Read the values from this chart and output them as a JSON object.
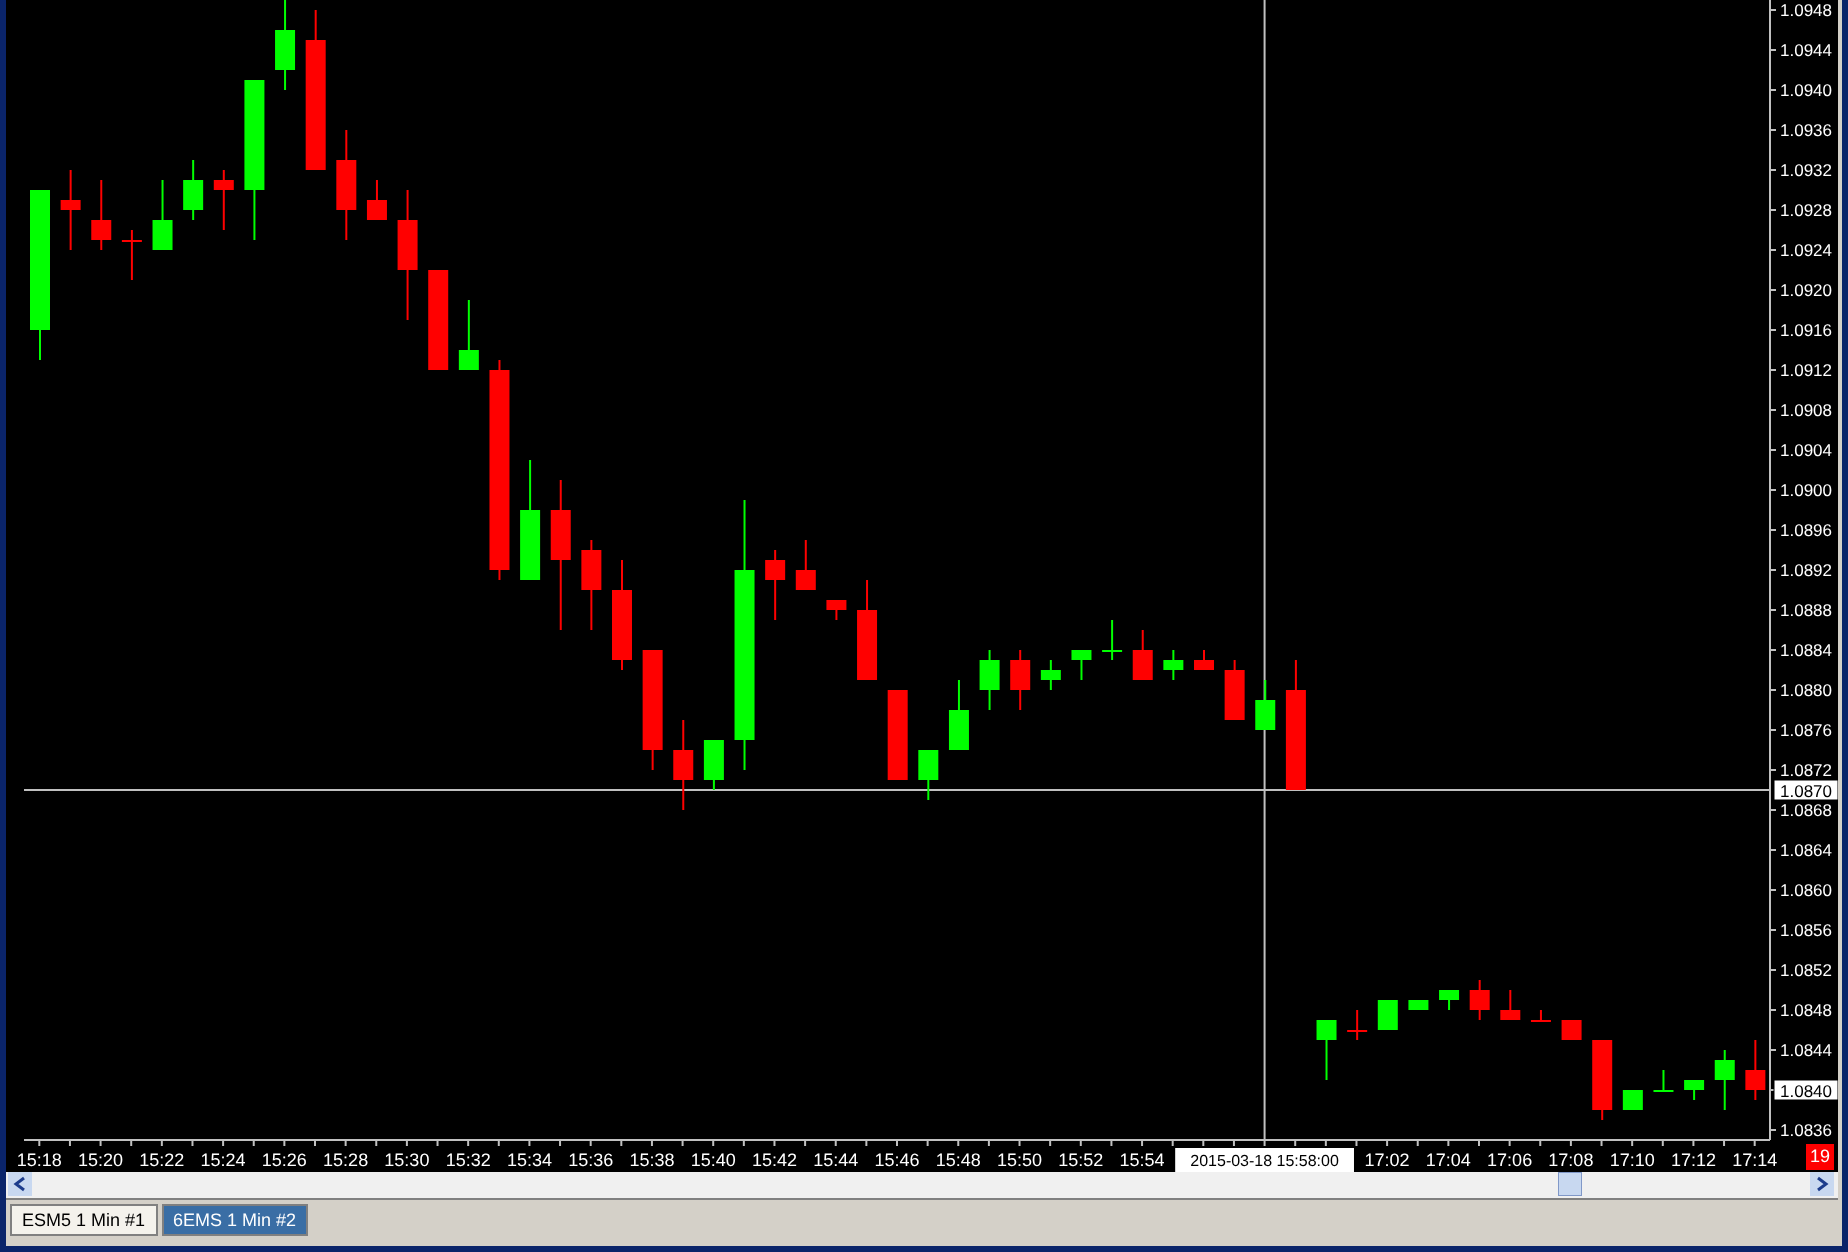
{
  "chart_data": {
    "type": "candlestick",
    "categories": [
      "15:18",
      null,
      "15:20",
      null,
      "15:22",
      null,
      "15:24",
      null,
      "15:26",
      null,
      "15:28",
      null,
      "15:30",
      null,
      "15:32",
      null,
      "15:34",
      null,
      "15:36",
      null,
      "15:38",
      null,
      "15:40",
      null,
      "15:42",
      null,
      "15:44",
      null,
      "15:46",
      null,
      "15:48",
      null,
      "15:50",
      null,
      "15:52",
      null,
      "15:54",
      null,
      null,
      null,
      "2015-03-18 15:58:00",
      null,
      null,
      null,
      "17:02",
      null,
      "17:04",
      null,
      "17:06",
      null,
      "17:08",
      null,
      "17:10",
      null,
      "17:12",
      null,
      "17:14"
    ],
    "ohlc": [
      [
        1.0916,
        1.093,
        1.0913,
        1.093
      ],
      [
        1.0929,
        1.0932,
        1.0924,
        1.0928
      ],
      [
        1.0927,
        1.0931,
        1.0924,
        1.0925
      ],
      [
        1.0925,
        1.0926,
        1.0921,
        1.0925
      ],
      [
        1.0924,
        1.0931,
        1.0924,
        1.0927
      ],
      [
        1.0928,
        1.0933,
        1.0927,
        1.0931
      ],
      [
        1.0931,
        1.0932,
        1.0926,
        1.093
      ],
      [
        1.093,
        1.0941,
        1.0925,
        1.0941
      ],
      [
        1.0942,
        1.0949,
        1.094,
        1.0946
      ],
      [
        1.0945,
        1.0948,
        1.0932,
        1.0932
      ],
      [
        1.0933,
        1.0936,
        1.0925,
        1.0928
      ],
      [
        1.0929,
        1.0931,
        1.0927,
        1.0927
      ],
      [
        1.0927,
        1.093,
        1.0917,
        1.0922
      ],
      [
        1.0922,
        1.0922,
        1.0912,
        1.0912
      ],
      [
        1.0912,
        1.0919,
        1.0912,
        1.0914
      ],
      [
        1.0912,
        1.0913,
        1.0891,
        1.0892
      ],
      [
        1.0891,
        1.0903,
        1.0891,
        1.0898
      ],
      [
        1.0898,
        1.0901,
        1.0886,
        1.0893
      ],
      [
        1.0894,
        1.0895,
        1.0886,
        1.089
      ],
      [
        1.089,
        1.0893,
        1.0882,
        1.0883
      ],
      [
        1.0884,
        1.0884,
        1.0872,
        1.0874
      ],
      [
        1.0874,
        1.0877,
        1.0868,
        1.0871
      ],
      [
        1.0871,
        1.0875,
        1.087,
        1.0875
      ],
      [
        1.0875,
        1.0899,
        1.0872,
        1.0892
      ],
      [
        1.0893,
        1.0894,
        1.0887,
        1.0891
      ],
      [
        1.0892,
        1.0895,
        1.089,
        1.089
      ],
      [
        1.0889,
        1.0889,
        1.0887,
        1.0888
      ],
      [
        1.0888,
        1.0891,
        1.0881,
        1.0881
      ],
      [
        1.088,
        1.088,
        1.0871,
        1.0871
      ],
      [
        1.0871,
        1.0874,
        1.0869,
        1.0874
      ],
      [
        1.0874,
        1.0881,
        1.0874,
        1.0878
      ],
      [
        1.088,
        1.0884,
        1.0878,
        1.0883
      ],
      [
        1.0883,
        1.0884,
        1.0878,
        1.088
      ],
      [
        1.0881,
        1.0883,
        1.088,
        1.0882
      ],
      [
        1.0883,
        1.0884,
        1.0881,
        1.0884
      ],
      [
        1.0884,
        1.0887,
        1.0883,
        1.0884
      ],
      [
        1.0884,
        1.0886,
        1.0881,
        1.0881
      ],
      [
        1.0882,
        1.0884,
        1.0881,
        1.0883
      ],
      [
        1.0883,
        1.0884,
        1.0882,
        1.0882
      ],
      [
        1.0882,
        1.0883,
        1.0877,
        1.0877
      ],
      [
        1.0876,
        1.0881,
        1.0876,
        1.0879
      ],
      [
        1.088,
        1.0883,
        1.087,
        1.087
      ],
      [
        1.0845,
        1.0847,
        1.0841,
        1.0847
      ],
      [
        1.0846,
        1.0848,
        1.0845,
        1.0846
      ],
      [
        1.0846,
        1.0849,
        1.0846,
        1.0849
      ],
      [
        1.0848,
        1.0849,
        1.0848,
        1.0849
      ],
      [
        1.0849,
        1.085,
        1.0848,
        1.085
      ],
      [
        1.085,
        1.0851,
        1.0847,
        1.0848
      ],
      [
        1.0848,
        1.085,
        1.0847,
        1.0847
      ],
      [
        1.0847,
        1.0848,
        1.0847,
        1.0847
      ],
      [
        1.0847,
        1.0847,
        1.0845,
        1.0845
      ],
      [
        1.0845,
        1.0845,
        1.0837,
        1.0838
      ],
      [
        1.0838,
        1.084,
        1.0838,
        1.084
      ],
      [
        1.084,
        1.0842,
        1.084,
        1.084
      ],
      [
        1.084,
        1.0841,
        1.0839,
        1.0841
      ],
      [
        1.0841,
        1.0844,
        1.0838,
        1.0843
      ],
      [
        1.0842,
        1.0845,
        1.0839,
        1.084
      ]
    ],
    "colors": [
      "#00ff00",
      "#ff0000",
      "#ff0000",
      "#ff0000",
      "#00ff00",
      "#00ff00",
      "#ff0000",
      "#00ff00",
      "#00ff00",
      "#ff0000",
      "#ff0000",
      "#ff0000",
      "#ff0000",
      "#ff0000",
      "#00ff00",
      "#ff0000",
      "#00ff00",
      "#ff0000",
      "#ff0000",
      "#ff0000",
      "#ff0000",
      "#ff0000",
      "#00ff00",
      "#00ff00",
      "#ff0000",
      "#ff0000",
      "#ff0000",
      "#ff0000",
      "#ff0000",
      "#00ff00",
      "#00ff00",
      "#00ff00",
      "#ff0000",
      "#00ff00",
      "#00ff00",
      "#00ff00",
      "#ff0000",
      "#00ff00",
      "#ff0000",
      "#ff0000",
      "#00ff00",
      "#ff0000",
      "#00ff00",
      "#ff0000",
      "#00ff00",
      "#00ff00",
      "#00ff00",
      "#ff0000",
      "#ff0000",
      "#ff0000",
      "#ff0000",
      "#ff0000",
      "#00ff00",
      "#00ff00",
      "#00ff00",
      "#00ff00",
      "#ff0000"
    ],
    "ylim": [
      1.0835,
      1.0949
    ],
    "yticks": [
      1.0836,
      {
        "value": 1.084,
        "label": null
      },
      1.0844,
      1.0848,
      1.0852,
      1.0856,
      {
        "value": 1.086,
        "label": "1.0860"
      },
      1.0864,
      1.0868,
      1.0872,
      1.0876,
      {
        "value": 1.088,
        "label": "1.0880"
      },
      1.0884,
      1.0888,
      1.0892,
      1.0896,
      {
        "value": 1.09,
        "label": "1.0900"
      },
      1.0904,
      1.0908,
      1.0912,
      1.0916,
      {
        "value": 1.092,
        "label": "1.0920"
      },
      1.0924,
      1.0928,
      1.0932,
      1.0936,
      {
        "value": 1.094,
        "label": "1.0940"
      },
      1.0944,
      1.0948
    ],
    "ref_lines": [
      {
        "axis": "y",
        "value": 1.087,
        "label": "1.0870",
        "color": "#c0c0c0"
      },
      {
        "axis": "x",
        "value": "2015-03-18 15:58:00",
        "color": "#c0c0c0"
      }
    ],
    "annotations": [
      {
        "text": "1.0840",
        "x": "17:14",
        "y": 1.084
      },
      "19",
      "ESM5 1 Min #1",
      "6EMS 1 Min #2"
    ]
  }
}
